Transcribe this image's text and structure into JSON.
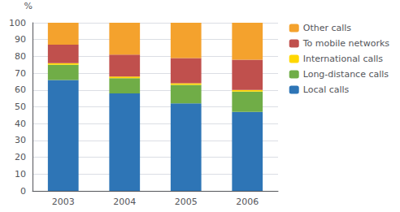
{
  "chart_data": {
    "type": "bar",
    "stacked": true,
    "ylabel": "%",
    "categories": [
      "2003",
      "2004",
      "2005",
      "2006"
    ],
    "series": [
      {
        "name": "Local calls",
        "color": "#2E75B6",
        "values": [
          66,
          58,
          52,
          47
        ]
      },
      {
        "name": "Long-distance calls",
        "color": "#70AD47",
        "values": [
          9,
          9,
          11,
          12
        ]
      },
      {
        "name": "International calls",
        "color": "#FFD700",
        "values": [
          1,
          1,
          1,
          1
        ]
      },
      {
        "name": "To mobile networks",
        "color": "#C0504D",
        "values": [
          11,
          13,
          15,
          18
        ]
      },
      {
        "name": "Other calls",
        "color": "#F4A22D",
        "values": [
          13,
          19,
          21,
          22
        ]
      }
    ],
    "ylim": [
      0,
      100
    ],
    "yticks": [
      0,
      10,
      20,
      30,
      40,
      50,
      60,
      70,
      80,
      90,
      100
    ],
    "grid": true,
    "legend": "right"
  }
}
